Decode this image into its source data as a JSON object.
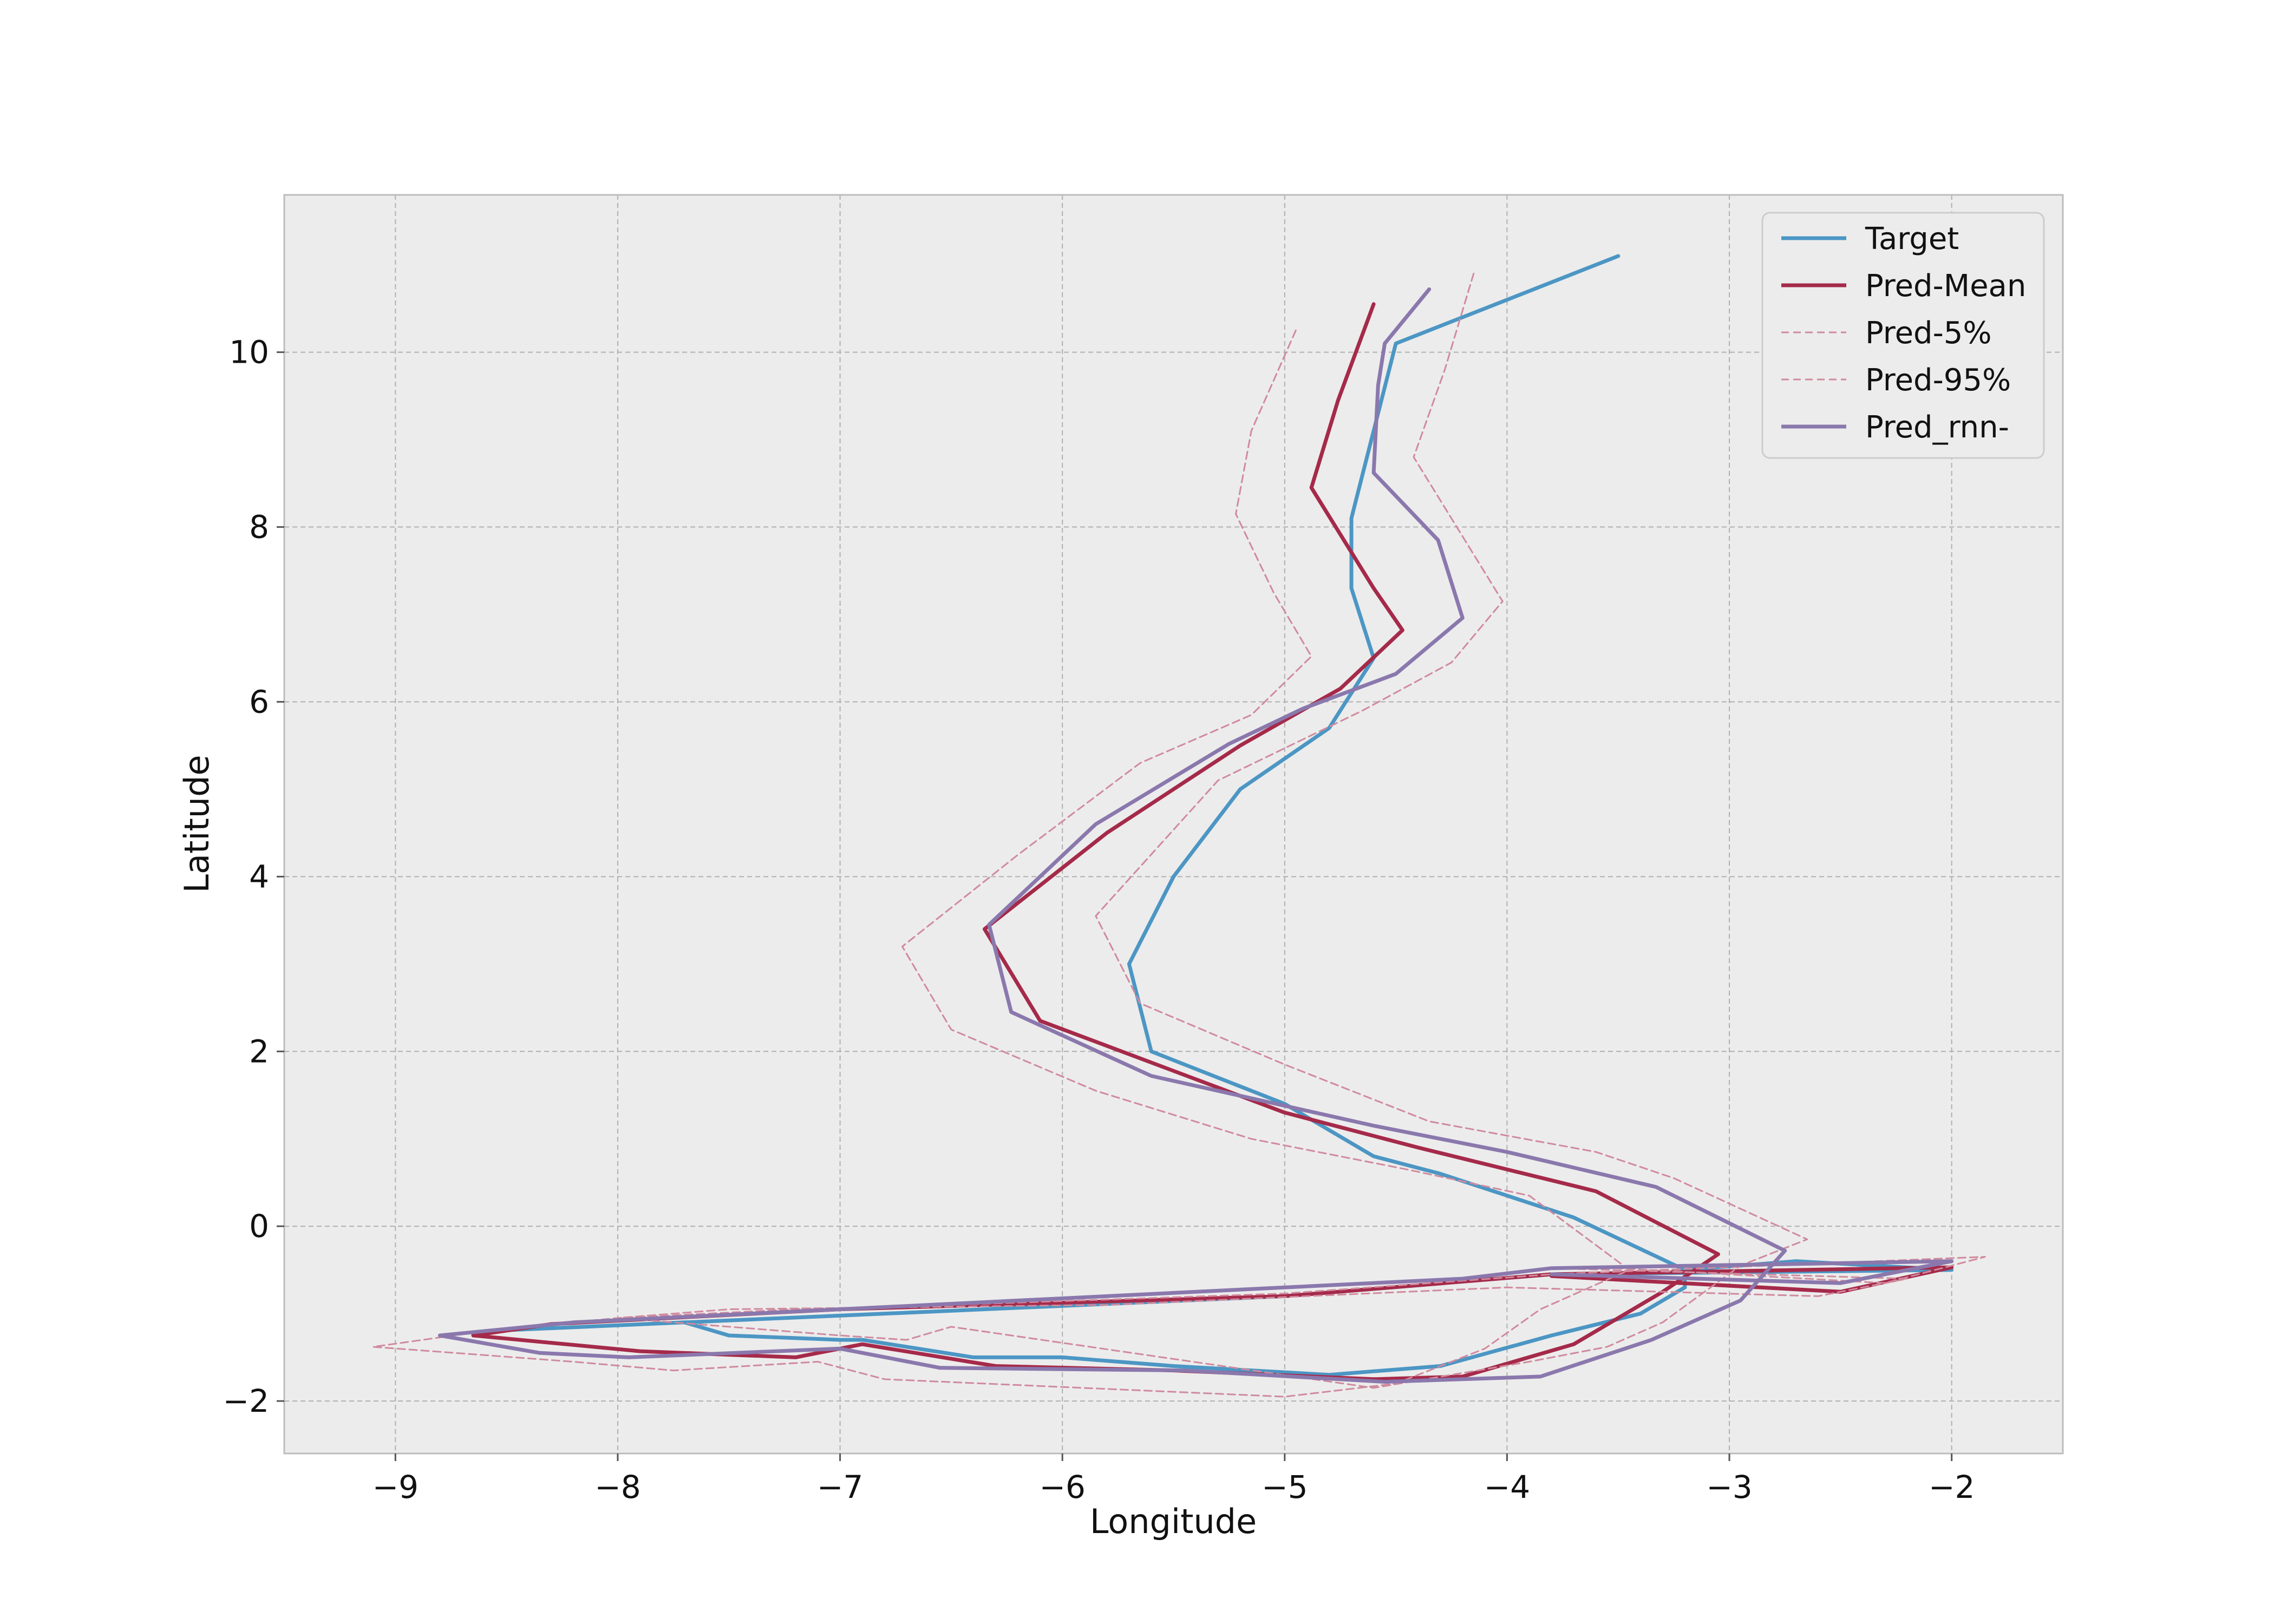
{
  "chart_data": {
    "type": "line",
    "title": "",
    "xlabel": "Longitude",
    "ylabel": "Latitude",
    "xlim": [
      -9.5,
      -1.5
    ],
    "ylim": [
      -2.6,
      11.8
    ],
    "xticks": [
      -9,
      -8,
      -7,
      -6,
      -5,
      -4,
      -3,
      -2
    ],
    "yticks": [
      -2,
      0,
      2,
      4,
      6,
      8,
      10
    ],
    "xtick_labels": [
      "−9",
      "−8",
      "−7",
      "−6",
      "−5",
      "−4",
      "−3",
      "−2"
    ],
    "ytick_labels": [
      "−2",
      "0",
      "2",
      "4",
      "6",
      "8",
      "10"
    ],
    "grid": true,
    "legend_position": "top-right",
    "background": "#ececec",
    "series": [
      {
        "name": "Target",
        "color": "#4c96c4",
        "dashed": false,
        "points": [
          [
            -3.5,
            11.1
          ],
          [
            -4.5,
            10.1
          ],
          [
            -4.7,
            8.1
          ],
          [
            -4.7,
            7.3
          ],
          [
            -4.6,
            6.5
          ],
          [
            -4.8,
            5.7
          ],
          [
            -5.2,
            5.0
          ],
          [
            -5.5,
            4.0
          ],
          [
            -5.7,
            3.0
          ],
          [
            -5.6,
            2.0
          ],
          [
            -5.0,
            1.4
          ],
          [
            -4.6,
            0.8
          ],
          [
            -4.3,
            0.6
          ],
          [
            -3.7,
            0.1
          ],
          [
            -3.2,
            -0.5
          ],
          [
            -2.7,
            -0.4
          ],
          [
            -2.0,
            -0.5
          ],
          [
            -3.8,
            -0.55
          ],
          [
            -5.0,
            -0.8
          ],
          [
            -8.6,
            -1.2
          ],
          [
            -7.7,
            -1.1
          ],
          [
            -7.5,
            -1.25
          ],
          [
            -7.0,
            -1.3
          ],
          [
            -6.9,
            -1.3
          ],
          [
            -6.4,
            -1.5
          ],
          [
            -6.0,
            -1.5
          ],
          [
            -5.5,
            -1.6
          ],
          [
            -4.8,
            -1.7
          ],
          [
            -4.3,
            -1.6
          ],
          [
            -3.8,
            -1.25
          ],
          [
            -3.4,
            -1.0
          ],
          [
            -3.2,
            -0.7
          ],
          [
            -3.2,
            -0.55
          ]
        ]
      },
      {
        "name": "Pred-Mean",
        "color": "#a52a4a",
        "dashed": false,
        "points": [
          [
            -4.6,
            10.55
          ],
          [
            -4.76,
            9.45
          ],
          [
            -4.88,
            8.45
          ],
          [
            -4.6,
            7.3
          ],
          [
            -4.47,
            6.82
          ],
          [
            -4.75,
            6.15
          ],
          [
            -5.2,
            5.5
          ],
          [
            -5.8,
            4.5
          ],
          [
            -6.35,
            3.4
          ],
          [
            -6.1,
            2.35
          ],
          [
            -5.0,
            1.3
          ],
          [
            -4.4,
            0.9
          ],
          [
            -3.6,
            0.4
          ],
          [
            -3.05,
            -0.32
          ],
          [
            -3.3,
            -0.75
          ],
          [
            -3.7,
            -1.35
          ],
          [
            -4.2,
            -1.72
          ],
          [
            -4.6,
            -1.75
          ],
          [
            -5.5,
            -1.65
          ],
          [
            -6.3,
            -1.6
          ],
          [
            -6.9,
            -1.35
          ],
          [
            -7.2,
            -1.5
          ],
          [
            -7.9,
            -1.43
          ],
          [
            -8.65,
            -1.25
          ],
          [
            -8.3,
            -1.12
          ],
          [
            -7.0,
            -0.95
          ],
          [
            -5.0,
            -0.8
          ],
          [
            -3.8,
            -0.55
          ],
          [
            -2.0,
            -0.47
          ],
          [
            -2.5,
            -0.75
          ],
          [
            -3.8,
            -0.57
          ]
        ]
      },
      {
        "name": "Pred-5%",
        "color": "#d08a9e",
        "dashed": true,
        "points": [
          [
            -4.95,
            10.25
          ],
          [
            -5.15,
            9.1
          ],
          [
            -5.22,
            8.15
          ],
          [
            -5.05,
            7.25
          ],
          [
            -4.88,
            6.52
          ],
          [
            -5.15,
            5.85
          ],
          [
            -5.65,
            5.3
          ],
          [
            -6.2,
            4.25
          ],
          [
            -6.72,
            3.2
          ],
          [
            -6.5,
            2.25
          ],
          [
            -5.85,
            1.55
          ],
          [
            -5.15,
            1.0
          ],
          [
            -4.45,
            0.65
          ],
          [
            -3.9,
            0.35
          ],
          [
            -3.45,
            -0.5
          ],
          [
            -3.85,
            -0.95
          ],
          [
            -4.1,
            -1.4
          ],
          [
            -4.5,
            -1.8
          ],
          [
            -5.0,
            -1.95
          ],
          [
            -6.8,
            -1.75
          ],
          [
            -7.1,
            -1.55
          ],
          [
            -7.75,
            -1.65
          ],
          [
            -8.2,
            -1.55
          ],
          [
            -9.1,
            -1.38
          ],
          [
            -8.6,
            -1.2
          ],
          [
            -8.0,
            -1.05
          ],
          [
            -7.2,
            -0.95
          ],
          [
            -6.5,
            -0.9
          ],
          [
            -5.0,
            -0.77
          ],
          [
            -3.8,
            -0.55
          ],
          [
            -1.85,
            -0.35
          ],
          [
            -2.3,
            -0.65
          ],
          [
            -3.5,
            -0.48
          ]
        ]
      },
      {
        "name": "Pred-95%",
        "color": "#d08a9e",
        "dashed": true,
        "points": [
          [
            -4.15,
            10.9
          ],
          [
            -4.28,
            9.8
          ],
          [
            -4.42,
            8.8
          ],
          [
            -4.02,
            7.15
          ],
          [
            -4.25,
            6.45
          ],
          [
            -4.65,
            5.9
          ],
          [
            -5.3,
            5.1
          ],
          [
            -5.85,
            3.55
          ],
          [
            -5.65,
            2.55
          ],
          [
            -5.0,
            1.85
          ],
          [
            -4.35,
            1.2
          ],
          [
            -3.6,
            0.85
          ],
          [
            -3.25,
            0.55
          ],
          [
            -2.65,
            -0.15
          ],
          [
            -2.95,
            -0.45
          ],
          [
            -3.3,
            -1.1
          ],
          [
            -3.55,
            -1.38
          ],
          [
            -3.9,
            -1.55
          ],
          [
            -4.6,
            -1.85
          ],
          [
            -6.5,
            -1.15
          ],
          [
            -6.7,
            -1.3
          ],
          [
            -7.0,
            -1.25
          ],
          [
            -8.0,
            -1.05
          ],
          [
            -7.5,
            -0.95
          ],
          [
            -5.8,
            -0.9
          ],
          [
            -4.0,
            -0.7
          ],
          [
            -2.6,
            -0.8
          ],
          [
            -2.2,
            -0.6
          ],
          [
            -3.8,
            -0.48
          ]
        ]
      },
      {
        "name": "Pred_rnn-",
        "color": "#8a78ad",
        "dashed": false,
        "points": [
          [
            -4.35,
            10.72
          ],
          [
            -4.55,
            10.1
          ],
          [
            -4.58,
            9.62
          ],
          [
            -4.6,
            8.62
          ],
          [
            -4.31,
            7.85
          ],
          [
            -4.2,
            6.96
          ],
          [
            -4.5,
            6.32
          ],
          [
            -4.92,
            5.92
          ],
          [
            -5.25,
            5.52
          ],
          [
            -5.85,
            4.6
          ],
          [
            -6.33,
            3.45
          ],
          [
            -6.23,
            2.45
          ],
          [
            -5.6,
            1.72
          ],
          [
            -4.6,
            1.15
          ],
          [
            -4.0,
            0.85
          ],
          [
            -3.33,
            0.45
          ],
          [
            -2.75,
            -0.28
          ],
          [
            -2.95,
            -0.85
          ],
          [
            -3.35,
            -1.3
          ],
          [
            -3.85,
            -1.72
          ],
          [
            -4.55,
            -1.78
          ],
          [
            -5.45,
            -1.65
          ],
          [
            -6.55,
            -1.62
          ],
          [
            -7.0,
            -1.4
          ],
          [
            -7.95,
            -1.5
          ],
          [
            -8.35,
            -1.45
          ],
          [
            -8.8,
            -1.25
          ],
          [
            -8.2,
            -1.1
          ],
          [
            -7.0,
            -0.95
          ],
          [
            -4.2,
            -0.6
          ],
          [
            -3.8,
            -0.48
          ],
          [
            -2.0,
            -0.4
          ],
          [
            -2.5,
            -0.65
          ],
          [
            -3.8,
            -0.55
          ]
        ]
      }
    ]
  }
}
